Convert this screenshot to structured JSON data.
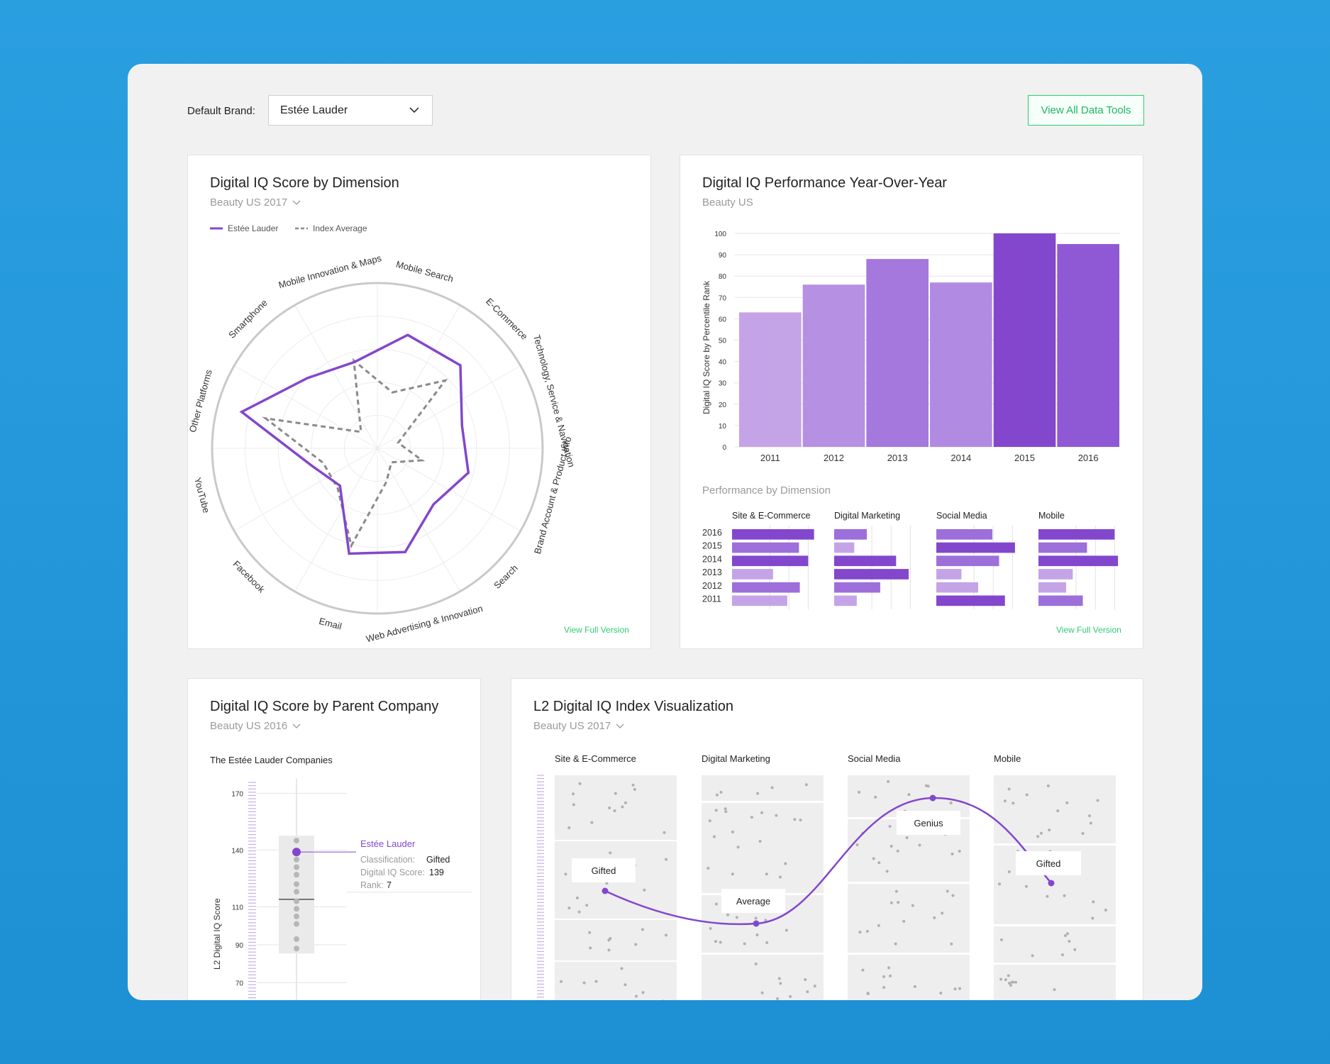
{
  "topbar": {
    "default_brand_label": "Default Brand:",
    "brand_value": "Estée Lauder",
    "view_all_label": "View All Data Tools"
  },
  "colors": {
    "purple_dark": "#8347cd",
    "purple_mid": "#9d6fda",
    "purple_light": "#c4a4e6",
    "green": "#2ecc71",
    "gray_dash": "#8a8a8a"
  },
  "radar_card": {
    "title": "Digital IQ Score by Dimension",
    "subtitle": "Beauty US 2017",
    "legend_brand": "Estée Lauder",
    "legend_index": "Index Average",
    "view_full": "View Full Version"
  },
  "yoy_card": {
    "title": "Digital IQ Performance Year-Over-Year",
    "subtitle": "Beauty US",
    "ylabel": "Digital IQ Score by Percentile Rank",
    "perf_title": "Performance by Dimension",
    "view_full": "View Full Version"
  },
  "parent_card": {
    "title": "Digital IQ Score by Parent Company",
    "subtitle": "Beauty US 2016",
    "company": "The Estée Lauder Companies",
    "ylabel": "L2 Digital IQ Score",
    "brand_label": "Estée Lauder",
    "classification_label": "Classification:",
    "classification_value": "Gifted",
    "score_label": "Digital IQ Score:",
    "score_value": "139",
    "rank_label": "Rank:",
    "rank_value": "7",
    "ticks": [
      "170",
      "140",
      "110",
      "90",
      "70"
    ]
  },
  "index_card": {
    "title": "L2 Digital IQ Index Visualization",
    "subtitle": "Beauty US 2017",
    "columns": [
      "Site & E-Commerce",
      "Digital Marketing",
      "Social Media",
      "Mobile"
    ],
    "labels": [
      "Gifted",
      "Average",
      "Genius",
      "Gifted"
    ]
  },
  "chart_data": [
    {
      "type": "radar",
      "title": "Digital IQ Score by Dimension",
      "axes": [
        "Mobile Search",
        "E-Commerce",
        "Technology, Service & Navigation",
        "Brand Account & Product Info",
        "Search",
        "Web Advertising & Innovation",
        "Email",
        "Facebook",
        "YouTube",
        "Other Platforms",
        "Smartphone",
        "Mobile Innovation & Maps"
      ],
      "series": [
        {
          "name": "Estée Lauder",
          "values": [
            0.71,
            0.71,
            0.53,
            0.57,
            0.48,
            0.65,
            0.66,
            0.32,
            0.41,
            0.85,
            0.6,
            0.54
          ]
        },
        {
          "name": "Index Average",
          "values": [
            0.35,
            0.58,
            0.13,
            0.28,
            0.12,
            0.21,
            0.61,
            0.34,
            0.34,
            0.7,
            0.14,
            0.55
          ]
        }
      ]
    },
    {
      "type": "bar",
      "title": "Digital IQ Performance Year-Over-Year",
      "ylabel": "Digital IQ Score by Percentile Rank",
      "ylim": [
        0,
        100
      ],
      "yticks": [
        0,
        10,
        20,
        30,
        40,
        50,
        60,
        70,
        80,
        90,
        100
      ],
      "categories": [
        "2011",
        "2012",
        "2013",
        "2014",
        "2015",
        "2016"
      ],
      "values": [
        63,
        76,
        88,
        77,
        100,
        95
      ]
    },
    {
      "type": "bar",
      "title": "Performance by Dimension",
      "categories": [
        "2016",
        "2015",
        "2014",
        "2013",
        "2012",
        "2011"
      ],
      "series": [
        {
          "name": "Site & E-Commerce",
          "values": [
            98,
            80,
            91,
            49,
            81,
            66
          ]
        },
        {
          "name": "Digital Marketing",
          "values": [
            39,
            24,
            74,
            89,
            55,
            27
          ]
        },
        {
          "name": "Social Media",
          "values": [
            67,
            94,
            75,
            30,
            50,
            82
          ]
        },
        {
          "name": "Mobile",
          "values": [
            91,
            58,
            95,
            41,
            33,
            53
          ]
        }
      ]
    },
    {
      "type": "scatter",
      "title": "Digital IQ Score by Parent Company",
      "ylabel": "L2 Digital IQ Score",
      "ylim": [
        60,
        175
      ],
      "values": [
        145,
        139,
        135,
        131,
        127,
        122,
        118,
        113,
        109,
        105,
        101,
        93,
        88
      ],
      "highlight": {
        "name": "Estée Lauder",
        "value": 139
      },
      "median": 114
    }
  ]
}
